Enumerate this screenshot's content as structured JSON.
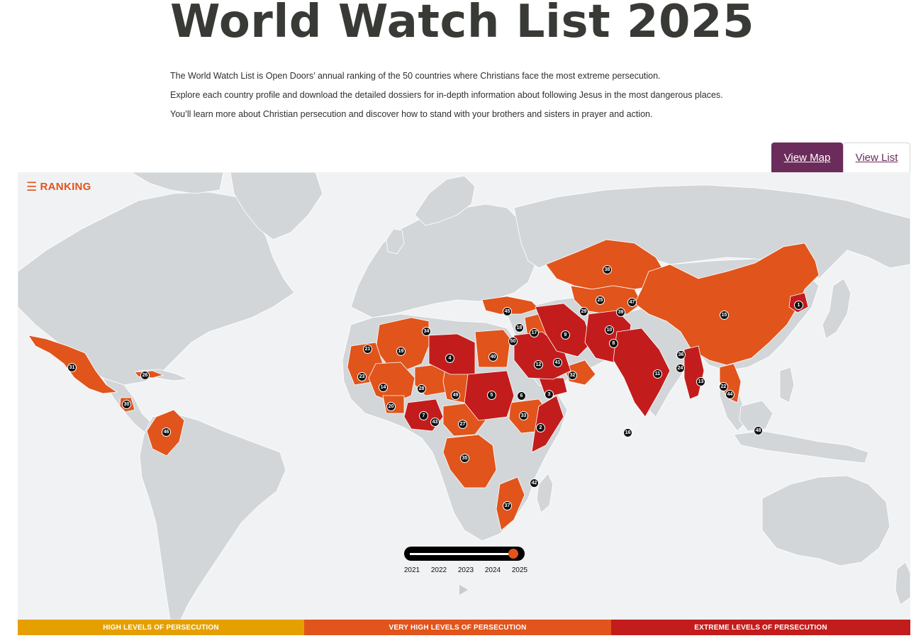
{
  "page": {
    "title": "World Watch List 2025",
    "intro": [
      "The World Watch List is Open Doors’ annual ranking of the 50 countries where Christians face the most extreme persecution.",
      "Explore each country profile and download the detailed dossiers for in-depth information about following Jesus in the most dangerous places.",
      "You’ll learn more about Christian persecution and discover how to stand with your brothers and sisters in prayer and action."
    ]
  },
  "tabs": {
    "view_map": "View Map",
    "view_list": "View List",
    "active": "view_map"
  },
  "map": {
    "ranking_label": "RANKING",
    "menu_icon": "hamburger-icon",
    "colors": {
      "ocean": "#f1f2f3",
      "land": "#d2d6d9",
      "high": "#e5a000",
      "very_high": "#e1541b",
      "extreme": "#c31c1c",
      "marker": "#111111"
    },
    "markers": [
      {
        "rank": "1"
      },
      {
        "rank": "2"
      },
      {
        "rank": "3"
      },
      {
        "rank": "4"
      },
      {
        "rank": "5"
      },
      {
        "rank": "6"
      },
      {
        "rank": "7"
      },
      {
        "rank": "8"
      },
      {
        "rank": "9"
      },
      {
        "rank": "10"
      },
      {
        "rank": "11"
      },
      {
        "rank": "12"
      },
      {
        "rank": "13"
      },
      {
        "rank": "14"
      },
      {
        "rank": "15"
      },
      {
        "rank": "16"
      },
      {
        "rank": "17"
      },
      {
        "rank": "18"
      },
      {
        "rank": "19"
      },
      {
        "rank": "20"
      },
      {
        "rank": "21"
      },
      {
        "rank": "22"
      },
      {
        "rank": "23"
      },
      {
        "rank": "24"
      },
      {
        "rank": "25"
      },
      {
        "rank": "26"
      },
      {
        "rank": "27"
      },
      {
        "rank": "28"
      },
      {
        "rank": "29"
      },
      {
        "rank": "30"
      },
      {
        "rank": "31"
      },
      {
        "rank": "32"
      },
      {
        "rank": "33"
      },
      {
        "rank": "34"
      },
      {
        "rank": "35"
      },
      {
        "rank": "36"
      },
      {
        "rank": "37"
      },
      {
        "rank": "38"
      },
      {
        "rank": "39"
      },
      {
        "rank": "40"
      },
      {
        "rank": "41"
      },
      {
        "rank": "42"
      },
      {
        "rank": "43"
      },
      {
        "rank": "44"
      },
      {
        "rank": "45"
      },
      {
        "rank": "46"
      },
      {
        "rank": "47"
      },
      {
        "rank": "48"
      },
      {
        "rank": "49"
      },
      {
        "rank": "50"
      }
    ]
  },
  "timeline": {
    "years": [
      "2021",
      "2022",
      "2023",
      "2024",
      "2025"
    ],
    "selected": "2025",
    "play_icon": "play-icon"
  },
  "legend": {
    "high": "HIGH LEVELS OF PERSECUTION",
    "very_high": "VERY HIGH LEVELS OF PERSECUTION",
    "extreme": "EXTREME LEVELS OF PERSECUTION"
  }
}
